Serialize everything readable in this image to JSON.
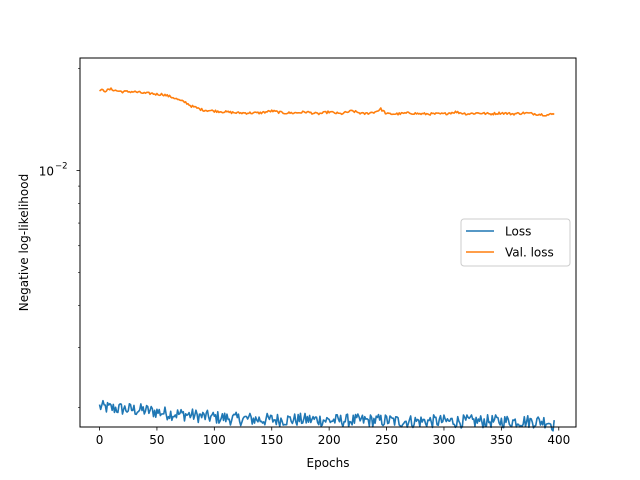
{
  "chart_data": {
    "type": "line",
    "title": "",
    "xlabel": "Epochs",
    "ylabel": "Negative log-likelihood",
    "xlim": [
      -17,
      415
    ],
    "ylim": [
      0.00175,
      0.0215
    ],
    "y_scale": "log",
    "grid": false,
    "legend_position": "center-right",
    "x_ticks": [
      0,
      50,
      100,
      150,
      200,
      250,
      300,
      350,
      400
    ],
    "x_tick_labels": [
      "0",
      "50",
      "100",
      "150",
      "200",
      "250",
      "300",
      "350",
      "400"
    ],
    "y_major_tick": {
      "value": 0.01,
      "base": "10",
      "exponent": "−2"
    },
    "y_minor_ticks": [
      0.002,
      0.003,
      0.004,
      0.005,
      0.006,
      0.007,
      0.008,
      0.009,
      0.02
    ],
    "series": [
      {
        "name": "Loss",
        "color": "#1f77b4",
        "x": [
          0,
          10,
          20,
          30,
          40,
          50,
          60,
          70,
          80,
          90,
          100,
          110,
          120,
          130,
          140,
          150,
          160,
          170,
          180,
          190,
          200,
          210,
          220,
          230,
          240,
          250,
          260,
          270,
          280,
          290,
          300,
          310,
          320,
          330,
          340,
          350,
          360,
          370,
          380,
          390,
          396
        ],
        "y": [
          0.00201,
          0.00199,
          0.00198,
          0.00197,
          0.00196,
          0.00194,
          0.00192,
          0.00191,
          0.0019,
          0.00188,
          0.00187,
          0.00186,
          0.00185,
          0.00185,
          0.00184,
          0.00184,
          0.00184,
          0.00184,
          0.00184,
          0.00184,
          0.00183,
          0.00183,
          0.00183,
          0.00183,
          0.00183,
          0.00183,
          0.00182,
          0.00182,
          0.00182,
          0.00182,
          0.00182,
          0.00182,
          0.00182,
          0.00182,
          0.00182,
          0.00182,
          0.00182,
          0.00182,
          0.00182,
          0.00182,
          0.00177
        ]
      },
      {
        "name": "Val. loss",
        "color": "#ff7f0e",
        "x": [
          0,
          5,
          10,
          15,
          20,
          30,
          40,
          45,
          50,
          55,
          60,
          65,
          70,
          75,
          80,
          85,
          90,
          100,
          110,
          120,
          130,
          140,
          150,
          160,
          170,
          180,
          190,
          200,
          210,
          220,
          230,
          240,
          245,
          250,
          260,
          270,
          280,
          290,
          300,
          310,
          320,
          330,
          340,
          350,
          360,
          370,
          380,
          390,
          396
        ],
        "y": [
          0.0173,
          0.0172,
          0.0174,
          0.0172,
          0.0171,
          0.0171,
          0.0169,
          0.0169,
          0.0168,
          0.0168,
          0.0166,
          0.0164,
          0.0161,
          0.0159,
          0.0155,
          0.0153,
          0.0151,
          0.015,
          0.0149,
          0.0148,
          0.0148,
          0.0148,
          0.015,
          0.0148,
          0.0148,
          0.0149,
          0.0147,
          0.0149,
          0.0147,
          0.015,
          0.0147,
          0.0149,
          0.0152,
          0.0147,
          0.0147,
          0.0148,
          0.0147,
          0.0147,
          0.0147,
          0.0149,
          0.0147,
          0.0148,
          0.0147,
          0.0148,
          0.0147,
          0.0148,
          0.0147,
          0.0146,
          0.0147
        ]
      }
    ]
  }
}
